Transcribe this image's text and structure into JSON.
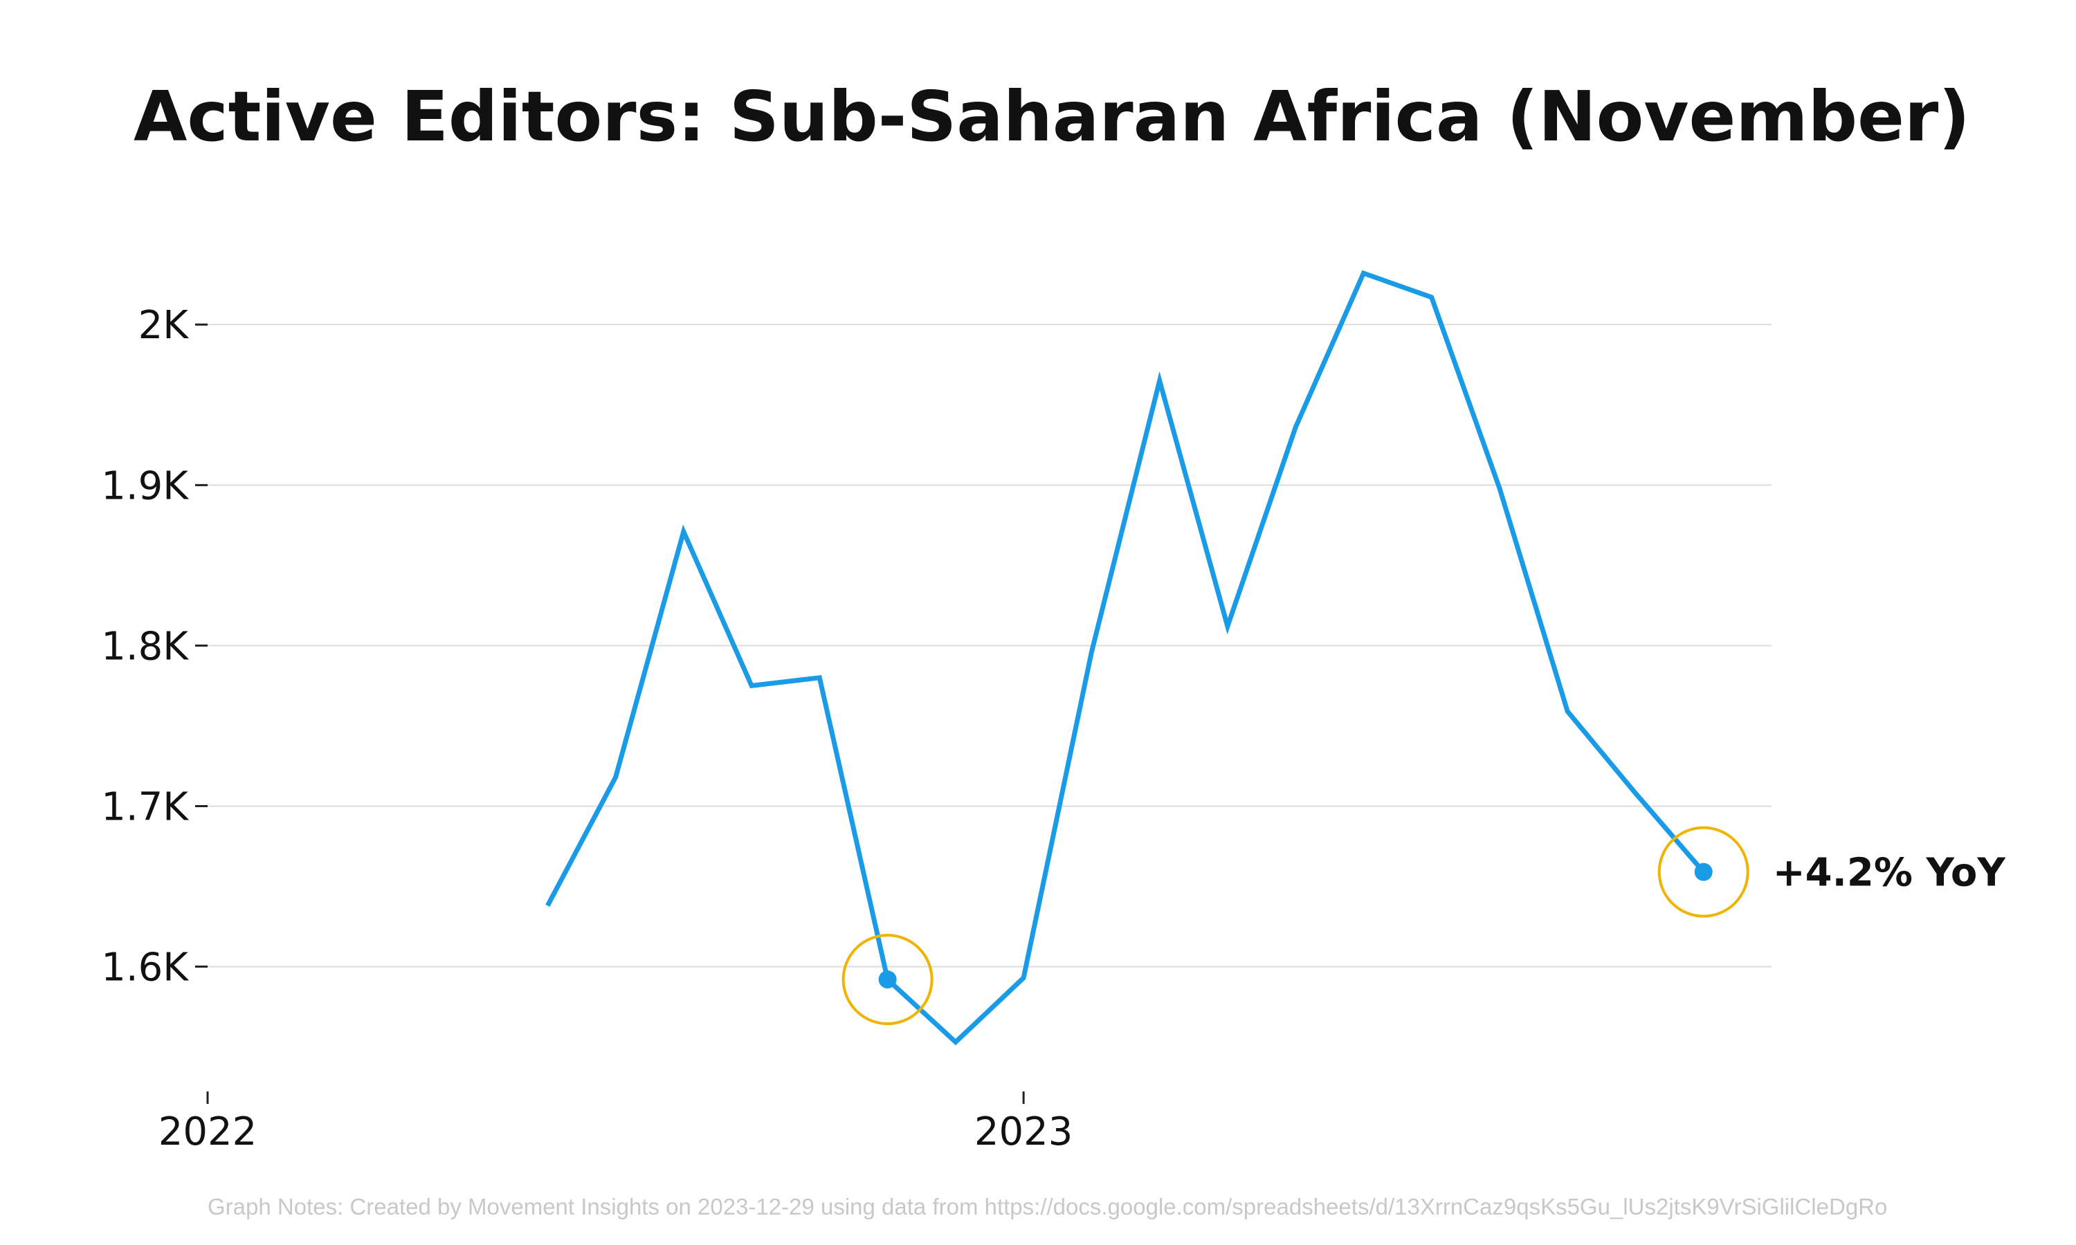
{
  "chart_data": {
    "type": "line",
    "title": "Active Editors: Sub-Saharan Africa (November)",
    "xlabel": "",
    "ylabel": "",
    "x_ticks": [
      {
        "date": "2022-01-01",
        "label": "2022"
      },
      {
        "date": "2023-01-01",
        "label": "2023"
      }
    ],
    "y_ticks": [
      {
        "value": 1600,
        "label": "1.6K"
      },
      {
        "value": 1700,
        "label": "1.7K"
      },
      {
        "value": 1800,
        "label": "1.8K"
      },
      {
        "value": 1900,
        "label": "1.9K"
      },
      {
        "value": 2000,
        "label": "2K"
      }
    ],
    "xlim": [
      "2022-01-01",
      "2023-12-01"
    ],
    "ylim": [
      1530,
      2060
    ],
    "grid": "horizontal",
    "series": [
      {
        "color": "#1a9be8",
        "points": [
          {
            "x": "2022-06-01",
            "y": 1638
          },
          {
            "x": "2022-07-01",
            "y": 1718
          },
          {
            "x": "2022-08-01",
            "y": 1871
          },
          {
            "x": "2022-09-01",
            "y": 1775
          },
          {
            "x": "2022-10-01",
            "y": 1780
          },
          {
            "x": "2022-11-01",
            "y": 1592
          },
          {
            "x": "2022-12-01",
            "y": 1553
          },
          {
            "x": "2023-01-01",
            "y": 1593
          },
          {
            "x": "2023-02-01",
            "y": 1796
          },
          {
            "x": "2023-03-01",
            "y": 1965
          },
          {
            "x": "2023-04-01",
            "y": 1812
          },
          {
            "x": "2023-05-01",
            "y": 1936
          },
          {
            "x": "2023-06-01",
            "y": 2032
          },
          {
            "x": "2023-07-01",
            "y": 2017
          },
          {
            "x": "2023-08-01",
            "y": 1898
          },
          {
            "x": "2023-09-01",
            "y": 1759
          },
          {
            "x": "2023-10-01",
            "y": 1708
          },
          {
            "x": "2023-11-01",
            "y": 1659
          }
        ]
      }
    ],
    "highlights": [
      {
        "x": "2022-11-01",
        "y": 1592,
        "label": ""
      },
      {
        "x": "2023-11-01",
        "y": 1659,
        "label": "+4.2% YoY"
      }
    ],
    "highlight_color": "#f0b400",
    "annotation": "+4.2% YoY",
    "notes": "Graph Notes: Created by Movement Insights  on 2023-12-29 using data from https://docs.google.com/spreadsheets/d/13XrrnCaz9qsKs5Gu_lUs2jtsK9VrSiGlilCleDgRo"
  }
}
